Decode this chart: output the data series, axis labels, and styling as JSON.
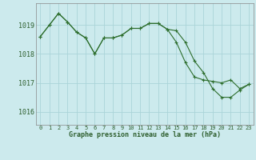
{
  "title": "Graphe pression niveau de la mer (hPa)",
  "background_color": "#cceaed",
  "grid_color": "#aad4d8",
  "line_color": "#2d6e2d",
  "marker_color": "#2d6e2d",
  "text_color": "#2d5e2d",
  "x_labels": [
    "0",
    "1",
    "2",
    "3",
    "4",
    "5",
    "6",
    "7",
    "8",
    "9",
    "10",
    "11",
    "12",
    "13",
    "14",
    "15",
    "16",
    "17",
    "18",
    "19",
    "20",
    "21",
    "22",
    "23"
  ],
  "y_ticks": [
    1016,
    1017,
    1018,
    1019
  ],
  "ylim": [
    1015.55,
    1019.75
  ],
  "xlim": [
    -0.5,
    23.5
  ],
  "series1": [
    1018.6,
    1019.0,
    1019.4,
    1019.1,
    1018.75,
    1018.55,
    1018.0,
    1018.55,
    1018.55,
    1018.65,
    1018.88,
    1018.88,
    1019.05,
    1019.05,
    1018.85,
    1018.8,
    1018.4,
    1017.75,
    1017.35,
    1016.8,
    1016.5,
    1016.5,
    1016.75,
    1016.95
  ],
  "series2": [
    1018.6,
    1019.0,
    1019.4,
    1019.1,
    1018.75,
    1018.55,
    1018.0,
    1018.55,
    1018.55,
    1018.65,
    1018.88,
    1018.88,
    1019.05,
    1019.05,
    1018.85,
    1018.4,
    1017.7,
    1017.2,
    1017.1,
    1017.05,
    1017.0,
    1017.1,
    1016.8,
    1016.95
  ]
}
